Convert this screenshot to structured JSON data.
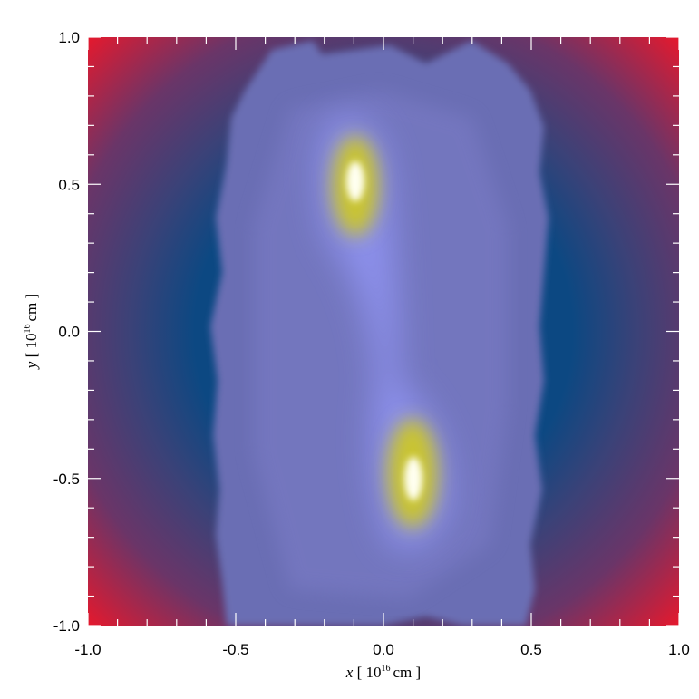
{
  "chart_data": {
    "type": "image",
    "xlabel": {
      "symbol": "x",
      "unit_base": "[ 10",
      "unit_exponent": "16",
      "unit_rest": "cm ]"
    },
    "ylabel": {
      "symbol": "y",
      "unit_base": "[ 10",
      "unit_exponent": "16",
      "unit_rest": "cm ]"
    },
    "xlim": [
      -1,
      1
    ],
    "ylim": [
      -1,
      1
    ],
    "xticks": [
      {
        "value": -1,
        "label": "-1.0"
      },
      -0.5,
      {
        "value": 0,
        "label": "0.0"
      },
      0.5,
      {
        "value": 1,
        "label": "1.0"
      }
    ],
    "yticks": [
      {
        "value": -1,
        "label": "-1.0"
      },
      -0.5,
      {
        "value": 0,
        "label": "0.0"
      },
      0.5,
      {
        "value": 1,
        "label": "1.0"
      }
    ],
    "xminorticks": [
      -0.9,
      -0.8,
      -0.7,
      -0.6,
      -0.4,
      -0.3,
      -0.2,
      -0.1,
      0.1,
      0.2,
      0.3,
      0.4,
      0.6,
      0.7,
      0.8,
      0.9
    ],
    "yminorticks": [
      -0.9,
      -0.8,
      -0.7,
      -0.6,
      -0.4,
      -0.3,
      -0.2,
      -0.1,
      0.1,
      0.2,
      0.3,
      0.4,
      0.6,
      0.7,
      0.8,
      0.9
    ]
  }
}
